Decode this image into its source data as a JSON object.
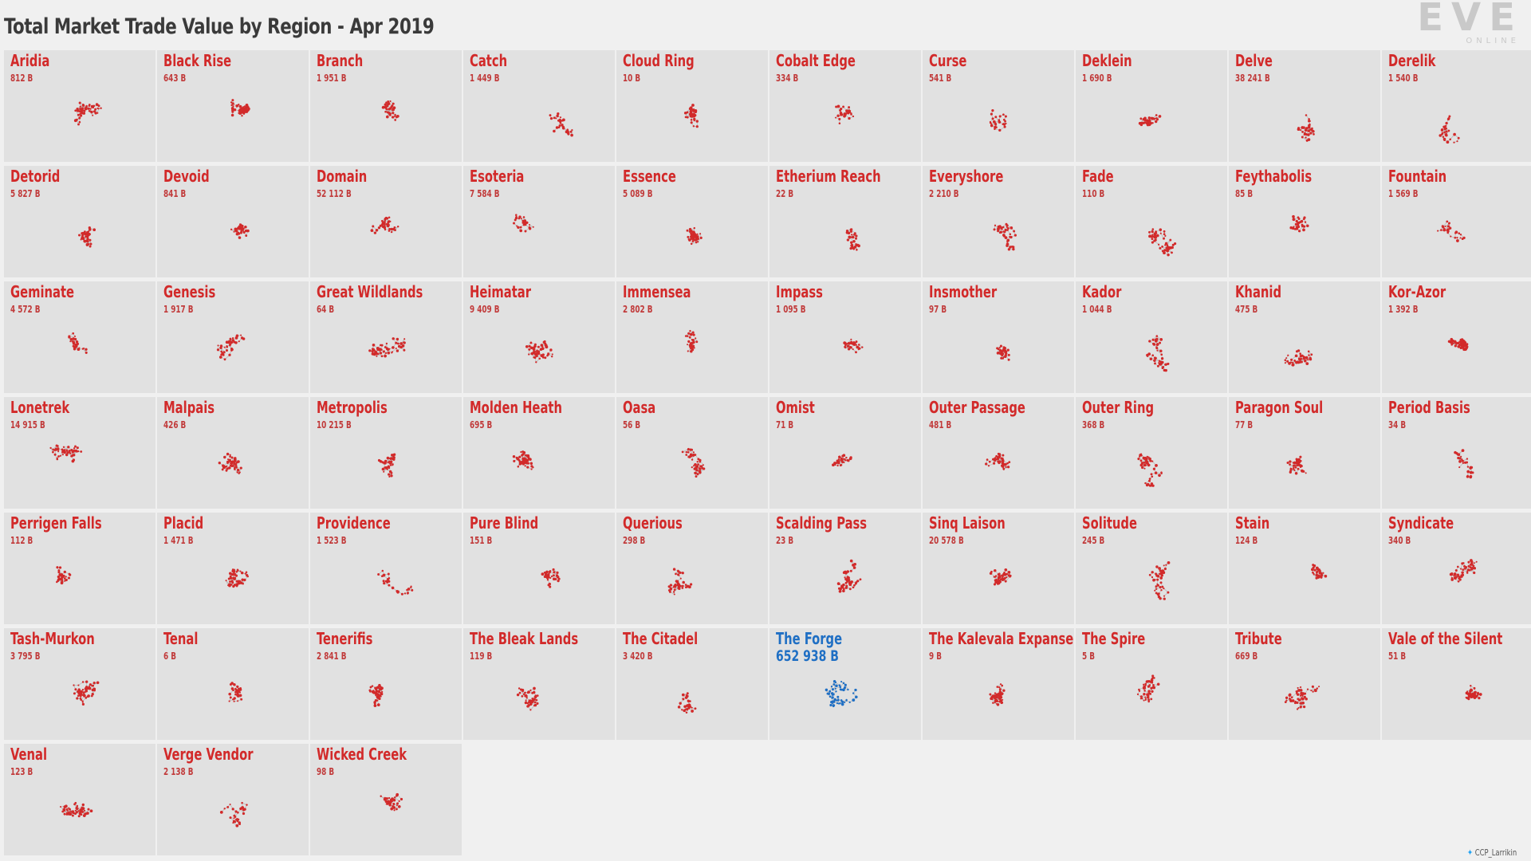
{
  "title": "Total Market Trade Value by Region - Apr 2019",
  "logo": {
    "main": "EVE",
    "sub": "ONLINE"
  },
  "credit": "CCP_Larrikin",
  "colors": {
    "default": "#d22a2a",
    "highlight": "#1f6fc4",
    "panel": "#e1e1e1",
    "link": "#b8b8b8"
  },
  "chart_data": {
    "type": "small-multiples",
    "highlight": "The Forge",
    "regions": [
      {
        "name": "Aridia",
        "value": "812 B"
      },
      {
        "name": "Black Rise",
        "value": "643 B"
      },
      {
        "name": "Branch",
        "value": "1 951 B"
      },
      {
        "name": "Catch",
        "value": "1 449 B"
      },
      {
        "name": "Cloud Ring",
        "value": "10 B"
      },
      {
        "name": "Cobalt Edge",
        "value": "334 B"
      },
      {
        "name": "Curse",
        "value": "541 B"
      },
      {
        "name": "Deklein",
        "value": "1 690 B"
      },
      {
        "name": "Delve",
        "value": "38 241 B"
      },
      {
        "name": "Derelik",
        "value": "1 540 B"
      },
      {
        "name": "Detorid",
        "value": "5 827 B"
      },
      {
        "name": "Devoid",
        "value": "841 B"
      },
      {
        "name": "Domain",
        "value": "52 112 B"
      },
      {
        "name": "Esoteria",
        "value": "7 584 B"
      },
      {
        "name": "Essence",
        "value": "5 089 B"
      },
      {
        "name": "Etherium Reach",
        "value": "22 B"
      },
      {
        "name": "Everyshore",
        "value": "2 210 B"
      },
      {
        "name": "Fade",
        "value": "110 B"
      },
      {
        "name": "Feythabolis",
        "value": "85 B"
      },
      {
        "name": "Fountain",
        "value": "1 569 B"
      },
      {
        "name": "Geminate",
        "value": "4 572 B"
      },
      {
        "name": "Genesis",
        "value": "1 917 B"
      },
      {
        "name": "Great Wildlands",
        "value": "64 B"
      },
      {
        "name": "Heimatar",
        "value": "9 409 B"
      },
      {
        "name": "Immensea",
        "value": "2 802 B"
      },
      {
        "name": "Impass",
        "value": "1 095 B"
      },
      {
        "name": "Insmother",
        "value": "97 B"
      },
      {
        "name": "Kador",
        "value": "1 044 B"
      },
      {
        "name": "Khanid",
        "value": "475 B"
      },
      {
        "name": "Kor-Azor",
        "value": "1 392 B"
      },
      {
        "name": "Lonetrek",
        "value": "14 915 B"
      },
      {
        "name": "Malpais",
        "value": "426 B"
      },
      {
        "name": "Metropolis",
        "value": "10 215 B"
      },
      {
        "name": "Molden Heath",
        "value": "695 B"
      },
      {
        "name": "Oasa",
        "value": "56 B"
      },
      {
        "name": "Omist",
        "value": "71 B"
      },
      {
        "name": "Outer Passage",
        "value": "481 B"
      },
      {
        "name": "Outer Ring",
        "value": "368 B"
      },
      {
        "name": "Paragon Soul",
        "value": "77 B"
      },
      {
        "name": "Period Basis",
        "value": "34 B"
      },
      {
        "name": "Perrigen Falls",
        "value": "112 B"
      },
      {
        "name": "Placid",
        "value": "1 471 B"
      },
      {
        "name": "Providence",
        "value": "1 523 B"
      },
      {
        "name": "Pure Blind",
        "value": "151 B"
      },
      {
        "name": "Querious",
        "value": "298 B"
      },
      {
        "name": "Scalding Pass",
        "value": "23 B"
      },
      {
        "name": "Sinq Laison",
        "value": "20 578 B"
      },
      {
        "name": "Solitude",
        "value": "245 B"
      },
      {
        "name": "Stain",
        "value": "124 B"
      },
      {
        "name": "Syndicate",
        "value": "340 B"
      },
      {
        "name": "Tash-Murkon",
        "value": "3 795 B"
      },
      {
        "name": "Tenal",
        "value": "6 B"
      },
      {
        "name": "Tenerifis",
        "value": "2 841 B"
      },
      {
        "name": "The Bleak Lands",
        "value": "119 B"
      },
      {
        "name": "The Citadel",
        "value": "3 420 B"
      },
      {
        "name": "The Forge",
        "value": "652 938 B"
      },
      {
        "name": "The Kalevala Expanse",
        "value": "9 B"
      },
      {
        "name": "The Spire",
        "value": "5 B"
      },
      {
        "name": "Tribute",
        "value": "669 B"
      },
      {
        "name": "Vale of the Silent",
        "value": "51 B"
      },
      {
        "name": "Venal",
        "value": "123 B"
      },
      {
        "name": "Verge Vendor",
        "value": "2 138 B"
      },
      {
        "name": "Wicked Creek",
        "value": "98 B"
      }
    ]
  }
}
